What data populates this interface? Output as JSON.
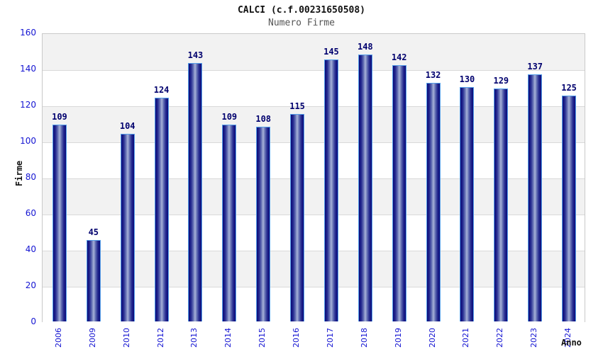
{
  "header": {
    "title": "CALCI (c.f.00231650508)",
    "subtitle": "Numero Firme"
  },
  "chart_data": {
    "type": "bar",
    "title": "CALCI (c.f.00231650508)",
    "subtitle": "Numero Firme",
    "xlabel": "Anno",
    "ylabel": "Firme",
    "categories": [
      "2006",
      "2009",
      "2010",
      "2012",
      "2013",
      "2014",
      "2015",
      "2016",
      "2017",
      "2018",
      "2019",
      "2020",
      "2021",
      "2022",
      "2023",
      "2024"
    ],
    "values": [
      109,
      45,
      104,
      124,
      143,
      109,
      108,
      115,
      145,
      148,
      142,
      132,
      130,
      129,
      137,
      125
    ],
    "ylim": [
      0,
      160
    ],
    "yticks": [
      0,
      20,
      40,
      60,
      80,
      100,
      120,
      140,
      160
    ],
    "grid": true,
    "legend_position": "none",
    "colors": {
      "bar_dark": "#0a0a78",
      "bar_light": "#a7b2d8",
      "bar_border": "#56a0ea",
      "tick_text": "#1414d2",
      "value_label": "#00006e",
      "band_gray": "#f2f2f2",
      "band_white": "#ffffff",
      "gridline": "#d9d9d9",
      "plot_border": "#c9c9c9",
      "title_color": "#111111",
      "subtitle_color": "#555555"
    }
  }
}
